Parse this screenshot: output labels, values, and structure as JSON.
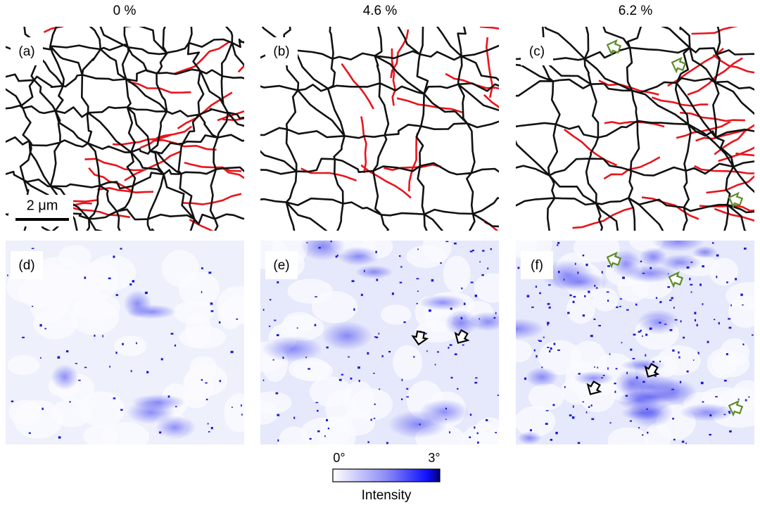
{
  "columns": [
    {
      "strain": "0 %"
    },
    {
      "strain": "4.6 %"
    },
    {
      "strain": "6.2 %"
    }
  ],
  "panels": [
    {
      "label": "(a)"
    },
    {
      "label": "(b)"
    },
    {
      "label": "(c)"
    },
    {
      "label": "(d)"
    },
    {
      "label": "(e)"
    },
    {
      "label": "(f)"
    }
  ],
  "scale_bar": "2 μm",
  "colorbar": {
    "min_label": "0°",
    "max_label": "3°",
    "title": "Intensity"
  }
}
